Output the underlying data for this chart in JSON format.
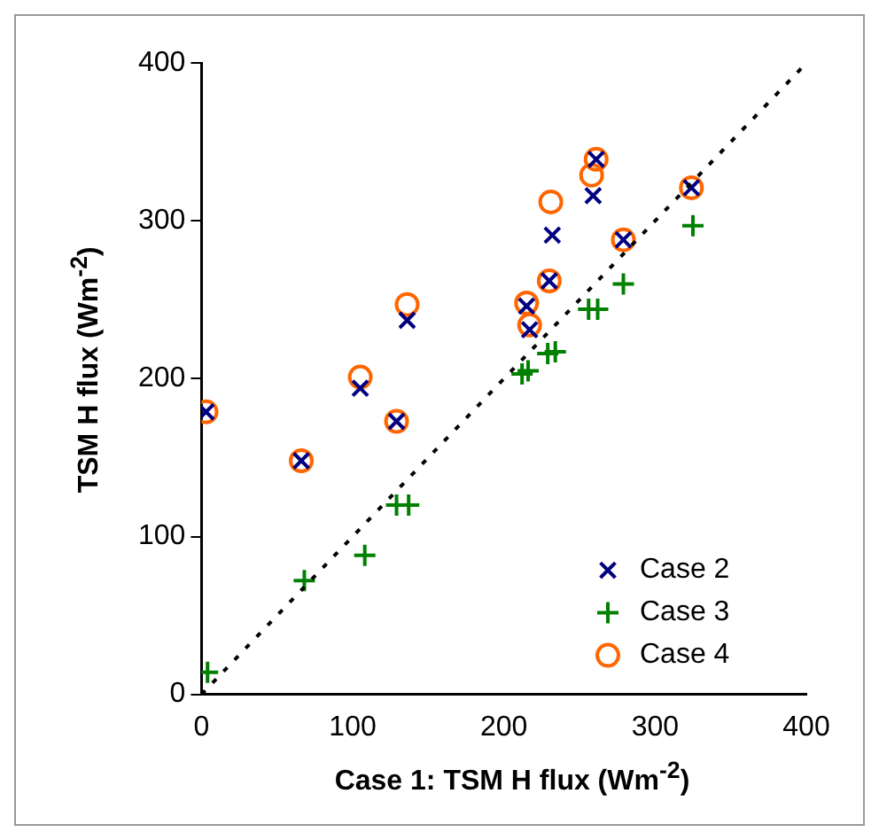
{
  "chart_data": {
    "type": "scatter",
    "xlabel": "Case 1: TSM H flux (Wm$^{-2}$)",
    "ylabel": "TSM H flux (Wm$^{-2}$)",
    "xlim": [
      0,
      400
    ],
    "xticks": [
      0,
      100,
      200,
      300,
      400
    ],
    "ylim": [
      0,
      400
    ],
    "yticks": [
      0,
      100,
      200,
      300,
      400
    ],
    "grid": false,
    "legend": "bottom right",
    "series": [
      {
        "type": "line",
        "color": "#000000",
        "line_style": "dotted",
        "marker": "none",
        "x": [
          0,
          400
        ],
        "values": [
          0,
          400
        ]
      },
      {
        "name": "Case 2",
        "color": "#000080",
        "marker": "x",
        "x": [
          3,
          66,
          105,
          129,
          136,
          217,
          215,
          230,
          232,
          259,
          261,
          279,
          324
        ],
        "values": [
          179,
          148,
          194,
          173,
          237,
          231,
          246,
          262,
          291,
          316,
          339,
          288,
          321
        ]
      },
      {
        "name": "Case 3",
        "color": "#008000",
        "marker": "cross",
        "x": [
          4,
          68,
          108,
          129,
          137,
          212,
          216,
          229,
          234,
          256,
          262,
          279,
          325
        ],
        "values": [
          14,
          72,
          88,
          120,
          120,
          203,
          205,
          216,
          217,
          244,
          244,
          260,
          297
        ]
      },
      {
        "name": "Case 4",
        "color": "#ff6600",
        "marker": "circle",
        "x": [
          3,
          66,
          105,
          129,
          136,
          217,
          215,
          230,
          231,
          258,
          261,
          279,
          324
        ],
        "values": [
          179,
          148,
          201,
          173,
          247,
          234,
          248,
          262,
          312,
          329,
          339,
          288,
          321
        ]
      }
    ]
  }
}
